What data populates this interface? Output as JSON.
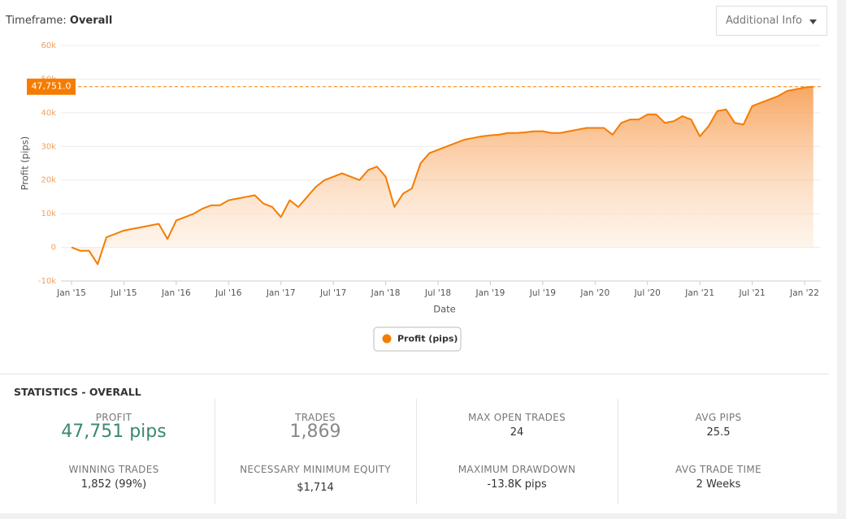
{
  "header": {
    "timeframe_label": "Timeframe:",
    "timeframe": "Overall",
    "dropdown": "Additional Info"
  },
  "chart_data": {
    "type": "area",
    "x_label": "Date",
    "y_label": "Profit (pips)",
    "x": [
      "2015-01",
      "2015-02",
      "2015-03",
      "2015-04",
      "2015-05",
      "2015-06",
      "2015-07",
      "2015-08",
      "2015-09",
      "2015-10",
      "2015-11",
      "2015-12",
      "2016-01",
      "2016-02",
      "2016-03",
      "2016-04",
      "2016-05",
      "2016-06",
      "2016-07",
      "2016-08",
      "2016-09",
      "2016-10",
      "2016-11",
      "2016-12",
      "2017-01",
      "2017-02",
      "2017-03",
      "2017-04",
      "2017-05",
      "2017-06",
      "2017-07",
      "2017-08",
      "2017-09",
      "2017-10",
      "2017-11",
      "2017-12",
      "2018-01",
      "2018-02",
      "2018-03",
      "2018-04",
      "2018-05",
      "2018-06",
      "2018-07",
      "2018-08",
      "2018-09",
      "2018-10",
      "2018-11",
      "2018-12",
      "2019-01",
      "2019-02",
      "2019-03",
      "2019-04",
      "2019-05",
      "2019-06",
      "2019-07",
      "2019-08",
      "2019-09",
      "2019-10",
      "2019-11",
      "2019-12",
      "2020-01",
      "2020-02",
      "2020-03",
      "2020-04",
      "2020-05",
      "2020-06",
      "2020-07",
      "2020-08",
      "2020-09",
      "2020-10",
      "2020-11",
      "2020-12",
      "2021-01",
      "2021-02",
      "2021-03",
      "2021-04",
      "2021-05",
      "2021-06",
      "2021-07",
      "2021-08",
      "2021-09",
      "2021-10",
      "2021-11",
      "2021-12",
      "2022-01",
      "2022-02"
    ],
    "series": [
      {
        "name": "Profit (pips)",
        "color": "#f57c00",
        "values": [
          0,
          -1000,
          -1000,
          -5000,
          3000,
          4000,
          5000,
          5500,
          6000,
          6500,
          7000,
          2500,
          8000,
          9000,
          10000,
          11500,
          12500,
          12500,
          14000,
          14500,
          15000,
          15500,
          13000,
          12000,
          9000,
          14000,
          12000,
          15000,
          18000,
          20000,
          21000,
          22000,
          21000,
          20000,
          23000,
          24000,
          21000,
          12000,
          16000,
          17500,
          25000,
          28000,
          29000,
          30000,
          31000,
          32000,
          32500,
          33000,
          33300,
          33500,
          34000,
          34000,
          34200,
          34500,
          34500,
          34000,
          34000,
          34500,
          35000,
          35500,
          35500,
          35500,
          33500,
          37000,
          38000,
          38000,
          39500,
          39500,
          37000,
          37500,
          39000,
          38000,
          33000,
          36000,
          40500,
          41000,
          37000,
          36500,
          42000,
          43000,
          44000,
          45000,
          46500,
          47000,
          47500,
          47751
        ]
      }
    ],
    "reference_line": {
      "value": 47751,
      "label": "47,751.0"
    },
    "ylim": [
      -10000,
      60000
    ],
    "yticks": [
      {
        "value": -10000,
        "label": "-10k"
      },
      0,
      {
        "value": 10000,
        "label": "10k"
      },
      {
        "value": 20000,
        "label": "20k"
      },
      {
        "value": 30000,
        "label": "30k"
      },
      {
        "value": 40000,
        "label": "40k"
      },
      {
        "value": 50000,
        "label": "50k"
      },
      {
        "value": 60000,
        "label": "60k"
      }
    ],
    "xticks": [
      {
        "value": "2015-01",
        "label": "Jan '15"
      },
      {
        "value": "2015-07",
        "label": "Jul '15"
      },
      {
        "value": "2016-01",
        "label": "Jan '16"
      },
      {
        "value": "2016-07",
        "label": "Jul '16"
      },
      {
        "value": "2017-01",
        "label": "Jan '17"
      },
      {
        "value": "2017-07",
        "label": "Jul '17"
      },
      {
        "value": "2018-01",
        "label": "Jan '18"
      },
      {
        "value": "2018-07",
        "label": "Jul '18"
      },
      {
        "value": "2019-01",
        "label": "Jan '19"
      },
      {
        "value": "2019-07",
        "label": "Jul '19"
      },
      {
        "value": "2020-01",
        "label": "Jan '20"
      },
      {
        "value": "2020-07",
        "label": "Jul '20"
      },
      {
        "value": "2021-01",
        "label": "Jan '21"
      },
      {
        "value": "2021-07",
        "label": "Jul '21"
      },
      {
        "value": "2022-01",
        "label": "Jan '22"
      }
    ],
    "grid": true
  },
  "statistics": {
    "title": "STATISTICS - OVERALL",
    "items": [
      {
        "label": "PROFIT",
        "value": "47,751 pips"
      },
      {
        "label": "WINNING TRADES",
        "value": "1,852 (99%)"
      },
      {
        "label": "TRADES",
        "value": "1,869"
      },
      {
        "label": "NECESSARY MINIMUM EQUITY",
        "value": "$1,714"
      },
      {
        "label": "MAX OPEN TRADES",
        "value": "24"
      },
      {
        "label": "MAXIMUM DRAWDOWN",
        "value": "-13.8K pips"
      },
      {
        "label": "AVG PIPS",
        "value": "25.5"
      },
      {
        "label": "AVG TRADE TIME",
        "value": "2 Weeks"
      }
    ]
  }
}
